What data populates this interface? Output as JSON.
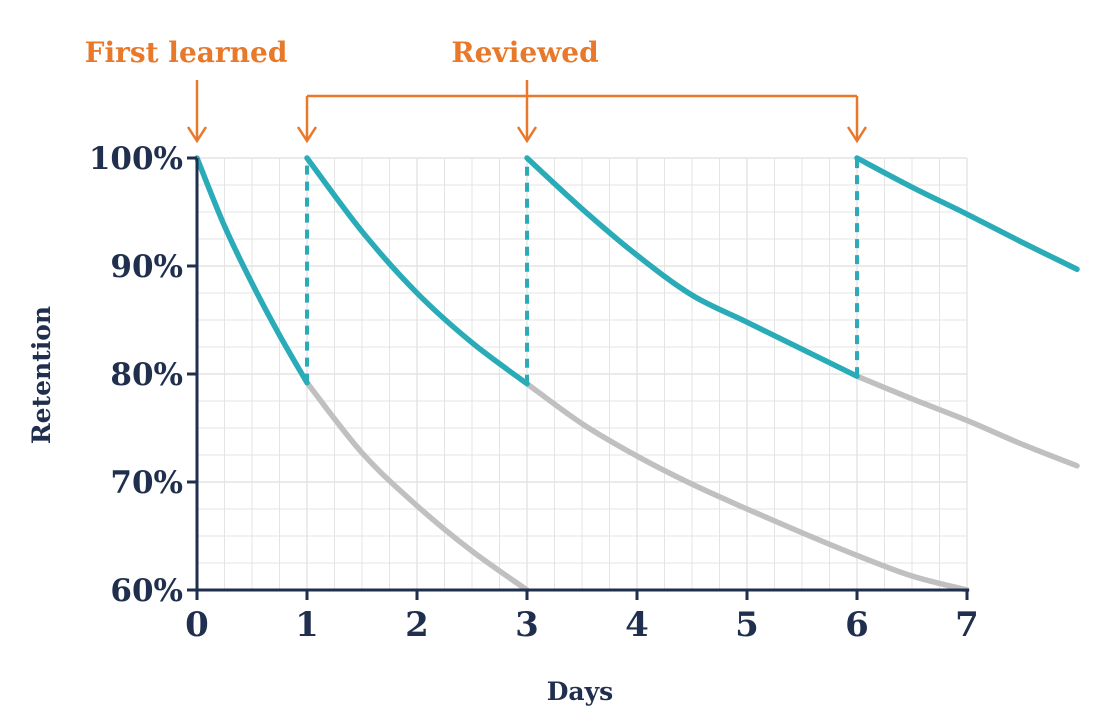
{
  "chart_data": {
    "type": "line",
    "xlabel": "Days",
    "ylabel": "Retention",
    "xlim": [
      0,
      7
    ],
    "ylim": [
      60,
      100
    ],
    "x_ticks": [
      "0",
      "1",
      "2",
      "3",
      "4",
      "5",
      "6",
      "7"
    ],
    "y_ticks": [
      "60%",
      "70%",
      "80%",
      "90%",
      "100%"
    ],
    "grid": true,
    "annotations": {
      "first_learned": {
        "label": "First learned",
        "day": 0
      },
      "reviewed": {
        "label": "Reviewed",
        "days": [
          1,
          3,
          6
        ]
      }
    },
    "series": [
      {
        "role": "with-review",
        "segments": [
          {
            "x": [
              0,
              0.25,
              0.5,
              0.75,
              1
            ],
            "y": [
              100,
              93.7,
              88.4,
              83.6,
              79.2
            ]
          },
          {
            "x": [
              1,
              1.5,
              2,
              2.5,
              3
            ],
            "y": [
              100,
              93.2,
              87.5,
              82.9,
              79.1
            ]
          },
          {
            "x": [
              3,
              3.5,
              4,
              4.5,
              5,
              5.5,
              6
            ],
            "y": [
              100,
              95.3,
              91.0,
              87.3,
              84.8,
              82.3,
              79.8
            ]
          },
          {
            "x": [
              6,
              6.5,
              7,
              7.5,
              8
            ],
            "y": [
              100,
              97.3,
              94.8,
              92.2,
              89.7
            ]
          }
        ]
      },
      {
        "role": "without-review",
        "segments": [
          {
            "x": [
              1,
              1.5,
              2,
              2.5,
              3
            ],
            "y": [
              79.2,
              72.7,
              67.8,
              63.6,
              60.0
            ]
          },
          {
            "x": [
              3,
              3.5,
              4,
              4.5,
              5,
              5.5,
              6,
              6.5,
              7
            ],
            "y": [
              79.1,
              75.4,
              72.4,
              69.8,
              67.5,
              65.3,
              63.2,
              61.3,
              60.0
            ]
          },
          {
            "x": [
              6,
              6.5,
              7,
              7.5,
              8
            ],
            "y": [
              79.8,
              77.7,
              75.7,
              73.5,
              71.5
            ]
          }
        ]
      }
    ],
    "colors": {
      "review_line": "#2aabb8",
      "forgetting_line": "#c0c0c0",
      "annotation": "#e8782a",
      "axis": "#1f2f4d",
      "grid": "#e4e4e4"
    }
  }
}
